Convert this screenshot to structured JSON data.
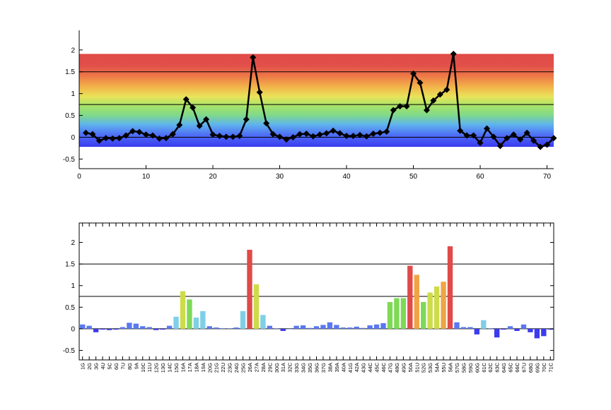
{
  "chart_data": [
    {
      "type": "line",
      "x": [
        1,
        2,
        3,
        4,
        5,
        6,
        7,
        8,
        9,
        10,
        11,
        12,
        13,
        14,
        15,
        16,
        17,
        18,
        19,
        20,
        21,
        22,
        23,
        24,
        25,
        26,
        27,
        28,
        29,
        30,
        31,
        32,
        33,
        34,
        35,
        36,
        37,
        38,
        39,
        40,
        41,
        42,
        43,
        44,
        45,
        46,
        47,
        48,
        49,
        50,
        51,
        52,
        53,
        54,
        55,
        56,
        57,
        58,
        59,
        60,
        61,
        62,
        63,
        64,
        65,
        66,
        67,
        68,
        69,
        70,
        71
      ],
      "series": [
        {
          "values": [
            0.1,
            0.07,
            -0.08,
            -0.02,
            -0.03,
            -0.02,
            0.04,
            0.14,
            0.12,
            0.06,
            0.04,
            -0.03,
            -0.02,
            0.07,
            0.28,
            0.87,
            0.68,
            0.26,
            0.41,
            0.06,
            0.03,
            0.01,
            0.01,
            0.03,
            0.41,
            1.83,
            1.03,
            0.32,
            0.07,
            0.01,
            -0.05,
            0.0,
            0.07,
            0.08,
            0.02,
            0.06,
            0.09,
            0.15,
            0.09,
            0.03,
            0.03,
            0.05,
            0.02,
            0.08,
            0.1,
            0.13,
            0.62,
            0.71,
            0.71,
            1.46,
            1.25,
            0.62,
            0.84,
            0.98,
            1.09,
            1.91,
            0.15,
            0.04,
            0.04,
            -0.13,
            0.2,
            0.01,
            -0.2,
            -0.02,
            0.06,
            -0.05,
            0.1,
            -0.08,
            -0.22,
            -0.17,
            -0.02
          ]
        }
      ],
      "xlim": [
        0,
        71
      ],
      "ylim": [
        -0.72,
        2.45
      ],
      "xticks": [
        "0",
        "10",
        "20",
        "30",
        "40",
        "50",
        "60",
        "70"
      ],
      "yticks": [
        "-0.5",
        "0",
        "0.5",
        "1",
        "1.5",
        "2"
      ],
      "reference_lines": [
        0,
        0.75,
        1.5
      ],
      "background": "rainbow gradient band from blue (bottom) to red (top)",
      "grid": false
    },
    {
      "type": "bar",
      "categories": [
        "1G",
        "2G",
        "3G",
        "4U",
        "5C",
        "6G",
        "7U",
        "8G",
        "9A",
        "10C",
        "11U",
        "12G",
        "13G",
        "14C",
        "15G",
        "16A",
        "17A",
        "18A",
        "19A",
        "20G",
        "21G",
        "22U",
        "23G",
        "24G",
        "25G",
        "26A",
        "27A",
        "28A",
        "29C",
        "30G",
        "31A",
        "32C",
        "33G",
        "34G",
        "35G",
        "36G",
        "37G",
        "38A",
        "39A",
        "40A",
        "41G",
        "42A",
        "43G",
        "44C",
        "45C",
        "46C",
        "47G",
        "48G",
        "49G",
        "50A",
        "51U",
        "52G",
        "53G",
        "54A",
        "55U",
        "56A",
        "57G",
        "58G",
        "59G",
        "60G",
        "61C",
        "62C",
        "63C",
        "64G",
        "65C",
        "66C",
        "67U",
        "68G",
        "69G",
        "70C",
        "71C"
      ],
      "values": [
        0.1,
        0.07,
        -0.08,
        -0.02,
        -0.03,
        -0.02,
        0.04,
        0.14,
        0.12,
        0.06,
        0.04,
        -0.03,
        -0.02,
        0.07,
        0.28,
        0.87,
        0.68,
        0.26,
        0.41,
        0.06,
        0.03,
        0.01,
        0.01,
        0.03,
        0.41,
        1.83,
        1.03,
        0.32,
        0.07,
        0.01,
        -0.05,
        0.0,
        0.07,
        0.08,
        0.02,
        0.06,
        0.09,
        0.15,
        0.09,
        0.03,
        0.03,
        0.05,
        0.02,
        0.08,
        0.1,
        0.13,
        0.62,
        0.71,
        0.71,
        1.46,
        1.25,
        0.62,
        0.84,
        0.98,
        1.09,
        1.91,
        0.15,
        0.04,
        0.04,
        -0.13,
        0.2,
        0.01,
        -0.2,
        -0.02,
        0.06,
        -0.05,
        0.1,
        -0.08,
        -0.22,
        -0.17,
        -0.02
      ],
      "ylim": [
        -0.72,
        2.45
      ],
      "yticks": [
        "-0.5",
        "0",
        "0.5",
        "1",
        "1.5",
        "2"
      ],
      "reference_lines": [
        0,
        0.75,
        1.5
      ],
      "color_scale": {
        "colors": [
          "#3b3bf0",
          "#5a78f2",
          "#7fcfe6",
          "#7ed957",
          "#cddc48",
          "#f0a443",
          "#e04a48"
        ],
        "thresholds": [
          0.19,
          0.45,
          0.75,
          1.05,
          1.35,
          1.6
        ]
      },
      "grid": false
    }
  ]
}
